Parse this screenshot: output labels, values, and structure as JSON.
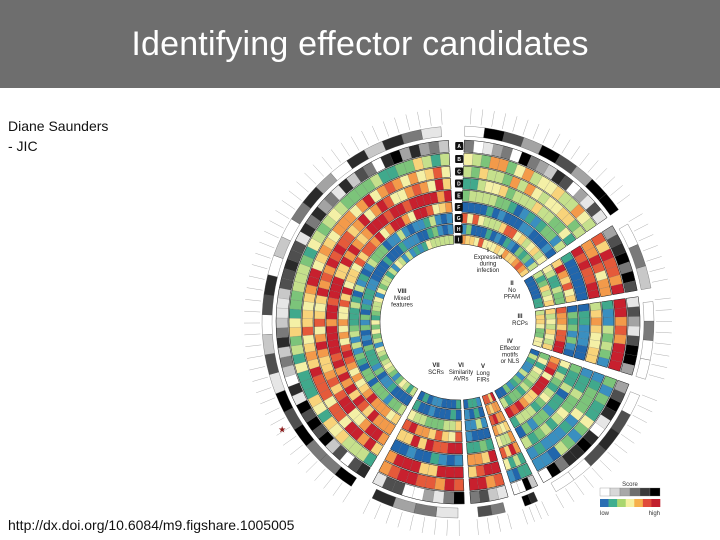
{
  "slide": {
    "title": "Identifying effector candidates",
    "author_lines": [
      "Diane Saunders",
      "- JIC"
    ],
    "doi_text": "http://dx.doi.org/10.6084/m9.figshare.1005005"
  },
  "figure": {
    "ring_letters": [
      "A",
      "B",
      "C",
      "D",
      "E",
      "F",
      "G",
      "H",
      "I"
    ],
    "segments": [
      {
        "id": "I",
        "numeral": "I",
        "lines": [
          "Expressed",
          "during",
          "infection"
        ]
      },
      {
        "id": "II",
        "numeral": "II",
        "lines": [
          "No",
          "PFAM"
        ]
      },
      {
        "id": "III",
        "numeral": "III",
        "lines": [
          "RCPs"
        ]
      },
      {
        "id": "IV",
        "numeral": "IV",
        "lines": [
          "Effector",
          "motifs",
          "or NLS"
        ]
      },
      {
        "id": "V",
        "numeral": "V",
        "lines": [
          "Long",
          "FIRs"
        ]
      },
      {
        "id": "VI",
        "numeral": "VI",
        "lines": [
          "Similarity",
          "AVRs"
        ]
      },
      {
        "id": "VII",
        "numeral": "VII",
        "lines": [
          "SCRs"
        ]
      },
      {
        "id": "VIII",
        "numeral": "VIII",
        "lines": [
          "Mixed",
          "features"
        ]
      }
    ],
    "legend": {
      "title": "Score",
      "low": "low",
      "high": "high",
      "gray_colors": [
        "#ffffff",
        "#d8d8d8",
        "#a8a8a8",
        "#6e6e6e",
        "#3a3a3a",
        "#000000"
      ],
      "color_stops": [
        "#2b6fb3",
        "#3fae8f",
        "#a9d66e",
        "#f5f0a0",
        "#f6b04b",
        "#e04b3a",
        "#c2202e"
      ]
    },
    "heat_colors": [
      "#2166ac",
      "#3a8fc0",
      "#40a98c",
      "#7cc47a",
      "#c5e08c",
      "#f4f0a6",
      "#f8d37a",
      "#f39a4a",
      "#e55a3a",
      "#c8202e"
    ],
    "gray_colors": [
      "#ffffff",
      "#e6e6e6",
      "#c8c8c8",
      "#a3a3a3",
      "#7a7a7a",
      "#4f4f4f",
      "#2a2a2a",
      "#000000"
    ],
    "highlight_marker": "star"
  }
}
